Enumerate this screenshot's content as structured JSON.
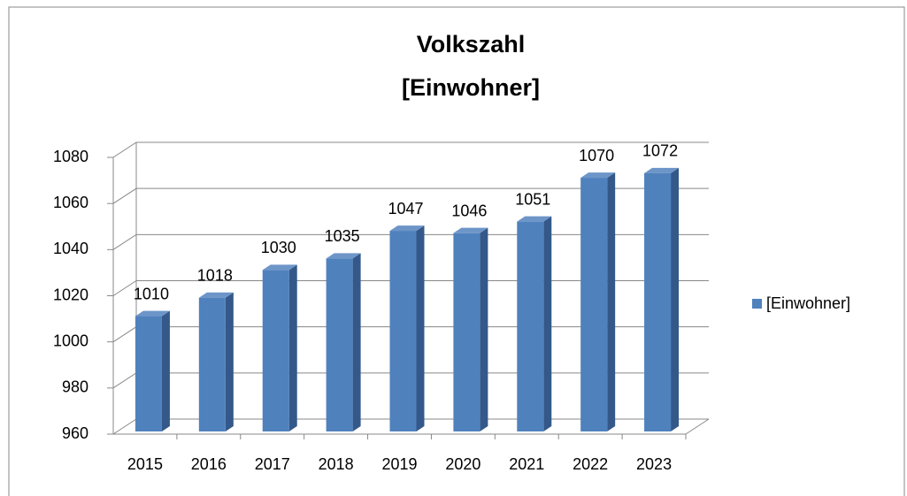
{
  "chart_data": {
    "type": "bar3d",
    "title": [
      "Volkszahl",
      "[Einwohner]"
    ],
    "categories": [
      "2015",
      "2016",
      "2017",
      "2018",
      "2019",
      "2020",
      "2021",
      "2022",
      "2023"
    ],
    "series": [
      {
        "name": "[Einwohner]",
        "color": "#4f81bd",
        "values": [
          1010,
          1018,
          1030,
          1035,
          1047,
          1046,
          1051,
          1070,
          1072
        ]
      }
    ],
    "ylim": [
      960,
      1080
    ],
    "yticks": [
      960,
      980,
      1000,
      1020,
      1040,
      1060,
      1080
    ],
    "grid": true,
    "legend": "right"
  }
}
